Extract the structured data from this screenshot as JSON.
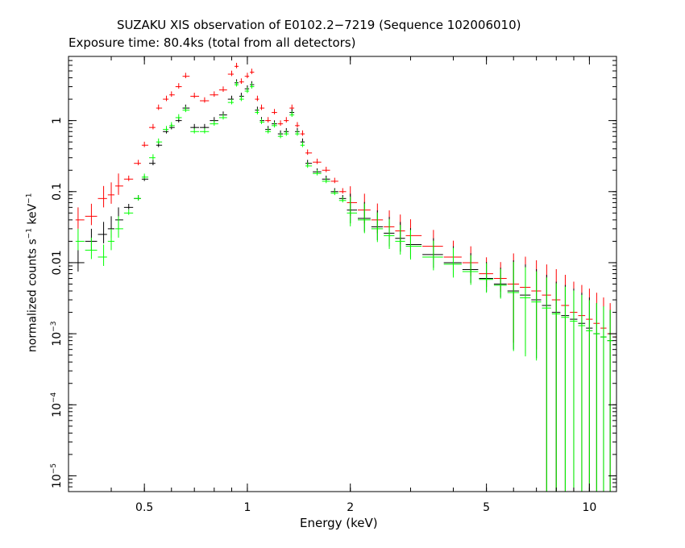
{
  "chart_data": {
    "type": "scatter",
    "title": "SUZAKU XIS observation of E0102.2−7219 (Sequence 102006010)",
    "subtitle": "Exposure time: 80.4ks (total from all detectors)",
    "xlabel": "Energy (keV)",
    "ylabel_main": "normalized counts s",
    "ylabel_sup1": "−1",
    "ylabel_mid": " keV",
    "ylabel_sup2": "−1",
    "x_scale": "log",
    "y_scale": "log",
    "xlim": [
      0.3,
      12
    ],
    "ylim": [
      6e-06,
      8
    ],
    "x_ticks": [
      {
        "value": 0.5,
        "label": "0.5"
      },
      {
        "value": 1,
        "label": "1"
      },
      {
        "value": 2,
        "label": "2"
      },
      {
        "value": 5,
        "label": "5"
      },
      {
        "value": 10,
        "label": "10"
      }
    ],
    "y_ticks": [
      {
        "value": 1,
        "base": "1",
        "exp": ""
      },
      {
        "value": 0.1,
        "base": "0.1",
        "exp": ""
      },
      {
        "value": 0.01,
        "base": "0.01",
        "exp": ""
      },
      {
        "value": 0.001,
        "base": "10",
        "exp": "−3"
      },
      {
        "value": 0.0001,
        "base": "10",
        "exp": "−4"
      },
      {
        "value": 1e-05,
        "base": "10",
        "exp": "−5"
      }
    ],
    "series": [
      {
        "color": "#ff0000",
        "x": [
          0.32,
          0.35,
          0.38,
          0.4,
          0.42,
          0.45,
          0.48,
          0.5,
          0.53,
          0.55,
          0.58,
          0.6,
          0.63,
          0.66,
          0.7,
          0.75,
          0.8,
          0.85,
          0.9,
          0.93,
          0.96,
          1.0,
          1.03,
          1.07,
          1.1,
          1.15,
          1.2,
          1.25,
          1.3,
          1.35,
          1.4,
          1.45,
          1.5,
          1.6,
          1.7,
          1.8,
          1.9,
          2.0,
          2.2,
          2.4,
          2.6,
          2.8,
          3.0,
          3.5,
          4.0,
          4.5,
          5.0,
          5.5,
          6.0,
          6.5,
          7.0,
          7.5,
          8.0,
          8.5,
          9.0,
          9.5,
          10.0,
          10.5,
          11.0,
          11.5,
          12.0
        ],
        "y": [
          0.04,
          0.045,
          0.08,
          0.09,
          0.12,
          0.15,
          0.25,
          0.45,
          0.8,
          1.5,
          2.0,
          2.3,
          3.0,
          4.2,
          2.2,
          1.9,
          2.3,
          2.7,
          4.5,
          5.8,
          3.5,
          4.2,
          4.8,
          2.0,
          1.5,
          1.0,
          1.3,
          0.9,
          1.0,
          1.5,
          0.85,
          0.65,
          0.35,
          0.26,
          0.2,
          0.14,
          0.1,
          0.07,
          0.055,
          0.04,
          0.032,
          0.028,
          0.024,
          0.017,
          0.012,
          0.01,
          0.007,
          0.006,
          0.005,
          0.0045,
          0.004,
          0.0035,
          0.003,
          0.0025,
          0.002,
          0.0018,
          0.0016,
          0.0014,
          0.0012,
          0.001,
          0.0009
        ]
      },
      {
        "color": "#000000",
        "x": [
          0.32,
          0.35,
          0.38,
          0.4,
          0.42,
          0.45,
          0.48,
          0.5,
          0.53,
          0.55,
          0.58,
          0.6,
          0.63,
          0.66,
          0.7,
          0.75,
          0.8,
          0.85,
          0.9,
          0.93,
          0.96,
          1.0,
          1.03,
          1.07,
          1.1,
          1.15,
          1.2,
          1.25,
          1.3,
          1.35,
          1.4,
          1.45,
          1.5,
          1.6,
          1.7,
          1.8,
          1.9,
          2.0,
          2.2,
          2.4,
          2.6,
          2.8,
          3.0,
          3.5,
          4.0,
          4.5,
          5.0,
          5.5,
          6.0,
          6.5,
          7.0,
          7.5,
          8.0,
          8.5,
          9.0,
          9.5,
          10.0,
          10.5,
          11.0,
          11.5,
          12.0
        ],
        "y": [
          0.01,
          0.02,
          0.025,
          0.03,
          0.04,
          0.06,
          0.08,
          0.15,
          0.25,
          0.45,
          0.7,
          0.8,
          1.0,
          1.5,
          0.8,
          0.8,
          1.0,
          1.2,
          2.0,
          3.4,
          2.2,
          2.8,
          3.2,
          1.4,
          1.0,
          0.75,
          0.9,
          0.65,
          0.7,
          1.3,
          0.7,
          0.5,
          0.25,
          0.19,
          0.15,
          0.1,
          0.08,
          0.055,
          0.042,
          0.032,
          0.026,
          0.022,
          0.018,
          0.013,
          0.01,
          0.008,
          0.006,
          0.005,
          0.004,
          0.0035,
          0.003,
          0.0025,
          0.002,
          0.0018,
          0.0016,
          0.0014,
          0.0012,
          0.001,
          0.0009,
          0.0008,
          0.0007
        ]
      },
      {
        "color": "#00ff00",
        "x": [
          0.32,
          0.35,
          0.38,
          0.4,
          0.42,
          0.45,
          0.48,
          0.5,
          0.53,
          0.55,
          0.58,
          0.6,
          0.63,
          0.66,
          0.7,
          0.75,
          0.8,
          0.85,
          0.9,
          0.93,
          0.96,
          1.0,
          1.03,
          1.07,
          1.1,
          1.15,
          1.2,
          1.25,
          1.3,
          1.35,
          1.4,
          1.45,
          1.5,
          1.6,
          1.7,
          1.8,
          1.9,
          2.0,
          2.2,
          2.4,
          2.6,
          2.8,
          3.0,
          3.5,
          4.0,
          4.5,
          5.0,
          5.5,
          6.0,
          6.5,
          7.0,
          7.5,
          8.0,
          8.5,
          9.0,
          9.5,
          10.0,
          10.5,
          11.0,
          11.5,
          12.0
        ],
        "y": [
          0.02,
          0.015,
          0.012,
          0.02,
          0.03,
          0.05,
          0.08,
          0.16,
          0.3,
          0.5,
          0.75,
          0.85,
          1.1,
          1.4,
          0.7,
          0.7,
          0.9,
          1.1,
          1.8,
          3.2,
          2.0,
          2.6,
          3.0,
          1.3,
          0.95,
          0.7,
          0.85,
          0.6,
          0.65,
          1.2,
          0.65,
          0.45,
          0.23,
          0.18,
          0.14,
          0.095,
          0.075,
          0.05,
          0.04,
          0.03,
          0.024,
          0.02,
          0.017,
          0.012,
          0.0095,
          0.0075,
          0.0058,
          0.0048,
          0.0038,
          0.0032,
          0.0028,
          0.0023,
          0.0019,
          0.0017,
          0.0015,
          0.0013,
          0.0011,
          0.001,
          0.0009,
          0.0008,
          0.0007
        ]
      }
    ]
  }
}
